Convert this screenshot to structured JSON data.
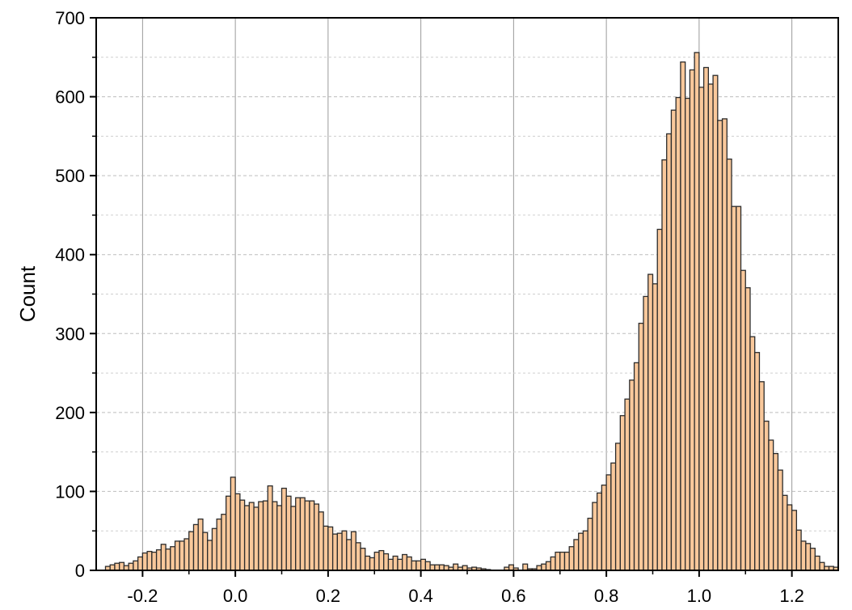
{
  "chart_data": {
    "type": "bar",
    "title": "",
    "xlabel": "",
    "ylabel": "Count",
    "xlim": [
      -0.3,
      1.3
    ],
    "ylim": [
      0,
      700
    ],
    "bin_width": 0.01,
    "bin_start": -0.28,
    "x_ticks": [
      "-0.2",
      "0.0",
      "0.2",
      "0.4",
      "0.6",
      "0.8",
      "1.0",
      "1.2"
    ],
    "y_ticks": [
      "0",
      "100",
      "200",
      "300",
      "400",
      "500",
      "600",
      "700"
    ],
    "grid": true,
    "bar_fill": "#f9c89b",
    "bar_stroke": "#2b2b2b",
    "values": [
      5,
      7,
      9,
      10,
      6,
      9,
      12,
      17,
      22,
      24,
      23,
      26,
      33,
      27,
      30,
      37,
      37,
      40,
      49,
      58,
      65,
      48,
      38,
      53,
      65,
      71,
      94,
      118,
      97,
      89,
      82,
      86,
      80,
      87,
      88,
      107,
      87,
      82,
      104,
      94,
      81,
      92,
      92,
      88,
      88,
      84,
      74,
      56,
      55,
      46,
      47,
      50,
      39,
      49,
      35,
      28,
      18,
      16,
      23,
      25,
      21,
      14,
      18,
      14,
      20,
      17,
      12,
      12,
      14,
      11,
      7,
      7,
      7,
      6,
      4,
      8,
      4,
      6,
      3,
      4,
      3,
      2,
      1,
      0,
      0,
      0,
      4,
      7,
      3,
      0,
      8,
      2,
      2,
      6,
      8,
      11,
      17,
      23,
      23,
      23,
      30,
      39,
      47,
      50,
      66,
      86,
      98,
      108,
      121,
      136,
      161,
      196,
      217,
      241,
      263,
      313,
      347,
      375,
      363,
      432,
      520,
      553,
      583,
      599,
      644,
      598,
      634,
      656,
      612,
      637,
      616,
      627,
      570,
      572,
      521,
      461,
      461,
      380,
      358,
      296,
      276,
      239,
      189,
      165,
      148,
      127,
      95,
      83,
      76,
      51,
      37,
      34,
      28,
      18,
      10,
      5,
      5,
      4
    ]
  }
}
